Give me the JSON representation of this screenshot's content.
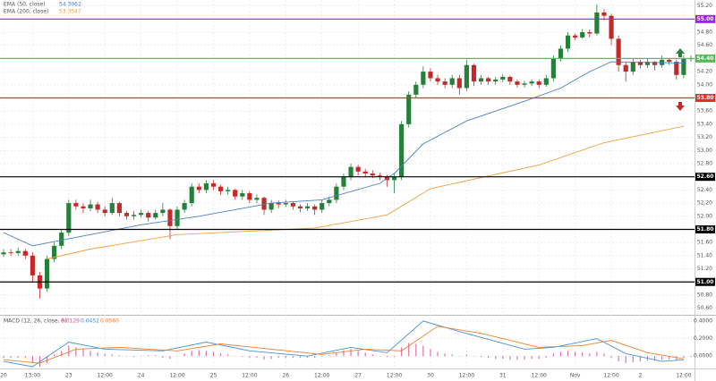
{
  "chart_data": [
    {
      "type": "candlestick",
      "legend": [
        {
          "label": "EMA (50, close)",
          "value": "54.3062",
          "color": "#4a7fc1"
        },
        {
          "label": "EMA (200, close)",
          "value": "53.3547",
          "color": "#f0a040"
        }
      ],
      "categories": [
        "20",
        null,
        null,
        null,
        "13:00",
        null,
        null,
        null,
        null,
        "23",
        null,
        null,
        null,
        null,
        "12:00",
        null,
        null,
        null,
        null,
        "24",
        null,
        null,
        null,
        null,
        "12:00",
        null,
        null,
        null,
        null,
        "25",
        null,
        null,
        null,
        null,
        "12:00",
        null,
        null,
        null,
        null,
        "26",
        null,
        null,
        null,
        null,
        "12:00",
        null,
        null,
        null,
        null,
        "27",
        null,
        null,
        null,
        null,
        "12:00",
        null,
        null,
        null,
        null,
        "30",
        null,
        null,
        null,
        null,
        "12:00",
        null,
        null,
        null,
        null,
        "31",
        null,
        null,
        null,
        null,
        "12:00",
        null,
        null,
        null,
        null,
        "Nov",
        null,
        null,
        null,
        null,
        "12:00",
        null,
        null,
        null,
        "2",
        null,
        null,
        null,
        null,
        null,
        "12:00",
        null
      ],
      "ohlc": [
        [
          51.42,
          51.5,
          51.38,
          51.45
        ],
        [
          51.45,
          51.5,
          51.4,
          51.44
        ],
        [
          51.44,
          51.52,
          51.4,
          51.47
        ],
        [
          51.47,
          51.5,
          51.35,
          51.4
        ],
        [
          51.4,
          51.45,
          51.0,
          51.1
        ],
        [
          51.1,
          51.15,
          50.75,
          50.9
        ],
        [
          50.9,
          51.4,
          50.85,
          51.35
        ],
        [
          51.35,
          51.6,
          51.3,
          51.55
        ],
        [
          51.55,
          51.8,
          51.5,
          51.75
        ],
        [
          51.75,
          52.25,
          51.7,
          52.2
        ],
        [
          52.2,
          52.25,
          52.1,
          52.15
        ],
        [
          52.15,
          52.2,
          52.05,
          52.12
        ],
        [
          52.12,
          52.25,
          52.08,
          52.18
        ],
        [
          52.18,
          52.22,
          52.05,
          52.1
        ],
        [
          52.1,
          52.15,
          52.0,
          52.05
        ],
        [
          52.05,
          52.28,
          52.02,
          52.2
        ],
        [
          52.2,
          52.22,
          52.0,
          52.05
        ],
        [
          52.05,
          52.08,
          51.95,
          52.0
        ],
        [
          52.0,
          52.08,
          51.95,
          52.02
        ],
        [
          52.02,
          52.1,
          51.98,
          52.05
        ],
        [
          52.05,
          52.08,
          51.92,
          51.98
        ],
        [
          51.98,
          52.1,
          51.95,
          52.05
        ],
        [
          52.05,
          52.2,
          52.0,
          52.1
        ],
        [
          52.1,
          52.12,
          51.65,
          51.85
        ],
        [
          51.85,
          52.15,
          51.8,
          52.1
        ],
        [
          52.1,
          52.25,
          52.05,
          52.2
        ],
        [
          52.2,
          52.5,
          52.15,
          52.45
        ],
        [
          52.45,
          52.5,
          52.35,
          52.4
        ],
        [
          52.4,
          52.55,
          52.35,
          52.5
        ],
        [
          52.5,
          52.55,
          52.4,
          52.45
        ],
        [
          52.45,
          52.48,
          52.32,
          52.38
        ],
        [
          52.38,
          52.45,
          52.33,
          52.4
        ],
        [
          52.4,
          52.42,
          52.25,
          52.3
        ],
        [
          52.3,
          52.4,
          52.25,
          52.35
        ],
        [
          52.35,
          52.38,
          52.2,
          52.25
        ],
        [
          52.25,
          52.33,
          52.2,
          52.28
        ],
        [
          52.28,
          52.3,
          52.02,
          52.1
        ],
        [
          52.1,
          52.25,
          52.05,
          52.2
        ],
        [
          52.2,
          52.24,
          52.12,
          52.18
        ],
        [
          52.18,
          52.25,
          52.14,
          52.2
        ],
        [
          52.2,
          52.22,
          52.1,
          52.15
        ],
        [
          52.15,
          52.18,
          52.06,
          52.12
        ],
        [
          52.12,
          52.2,
          52.08,
          52.15
        ],
        [
          52.15,
          52.18,
          52.02,
          52.1
        ],
        [
          52.1,
          52.25,
          52.05,
          52.2
        ],
        [
          52.2,
          52.3,
          52.15,
          52.25
        ],
        [
          52.25,
          52.5,
          52.2,
          52.45
        ],
        [
          52.45,
          52.65,
          52.4,
          52.6
        ],
        [
          52.6,
          52.8,
          52.55,
          52.75
        ],
        [
          52.75,
          52.78,
          52.62,
          52.68
        ],
        [
          52.68,
          52.72,
          52.6,
          52.65
        ],
        [
          52.65,
          52.7,
          52.58,
          52.62
        ],
        [
          52.62,
          52.66,
          52.55,
          52.6
        ],
        [
          52.6,
          52.63,
          52.45,
          52.55
        ],
        [
          52.55,
          52.65,
          52.35,
          52.6
        ],
        [
          52.6,
          53.45,
          52.55,
          53.4
        ],
        [
          53.4,
          53.9,
          53.35,
          53.85
        ],
        [
          53.85,
          54.05,
          53.8,
          54.0
        ],
        [
          54.0,
          54.28,
          53.95,
          54.2
        ],
        [
          54.2,
          54.25,
          54.05,
          54.1
        ],
        [
          54.1,
          54.15,
          54.0,
          54.05
        ],
        [
          54.05,
          54.1,
          53.95,
          54.0
        ],
        [
          54.0,
          54.15,
          53.95,
          54.1
        ],
        [
          54.1,
          54.15,
          53.85,
          53.95
        ],
        [
          53.95,
          54.38,
          53.9,
          54.3
        ],
        [
          54.3,
          54.32,
          53.98,
          54.05
        ],
        [
          54.05,
          54.15,
          54.0,
          54.1
        ],
        [
          54.1,
          54.12,
          54.0,
          54.05
        ],
        [
          54.05,
          54.12,
          54.0,
          54.08
        ],
        [
          54.08,
          54.16,
          54.04,
          54.12
        ],
        [
          54.12,
          54.14,
          54.0,
          54.05
        ],
        [
          54.05,
          54.08,
          53.96,
          54.0
        ],
        [
          54.0,
          54.06,
          53.96,
          54.02
        ],
        [
          54.02,
          54.08,
          53.98,
          54.05
        ],
        [
          54.05,
          54.08,
          53.95,
          54.0
        ],
        [
          54.0,
          54.15,
          53.97,
          54.1
        ],
        [
          54.1,
          54.45,
          54.05,
          54.4
        ],
        [
          54.4,
          54.6,
          54.35,
          54.55
        ],
        [
          54.55,
          54.8,
          54.5,
          54.75
        ],
        [
          54.75,
          54.78,
          54.68,
          54.72
        ],
        [
          54.72,
          54.85,
          54.7,
          54.8
        ],
        [
          54.8,
          54.84,
          54.72,
          54.78
        ],
        [
          54.78,
          55.22,
          54.75,
          55.1
        ],
        [
          55.1,
          55.15,
          54.98,
          55.05
        ],
        [
          55.05,
          55.08,
          54.6,
          54.7
        ],
        [
          54.7,
          54.75,
          54.2,
          54.3
        ],
        [
          54.3,
          54.35,
          54.05,
          54.2
        ],
        [
          54.2,
          54.4,
          54.15,
          54.35
        ],
        [
          54.35,
          54.38,
          54.25,
          54.3
        ],
        [
          54.3,
          54.4,
          54.26,
          54.35
        ],
        [
          54.35,
          54.36,
          54.22,
          54.3
        ],
        [
          54.3,
          54.45,
          54.26,
          54.38
        ],
        [
          54.38,
          54.4,
          54.3,
          54.35
        ],
        [
          54.35,
          54.38,
          54.08,
          54.15
        ],
        [
          54.15,
          54.45,
          54.1,
          54.4
        ],
        [
          54.4,
          54.45,
          54.35,
          54.4
        ]
      ],
      "up_color": "#26803a",
      "down_color": "#c62828",
      "series": [
        {
          "name": "EMA (50, close)",
          "color": "#4a7fc1",
          "x": [
            0,
            4,
            12,
            19,
            27,
            37,
            44,
            52,
            54,
            58,
            64,
            72,
            77,
            81,
            84,
            94
          ],
          "values": [
            51.75,
            51.55,
            51.72,
            51.87,
            52.0,
            52.2,
            52.25,
            52.5,
            52.65,
            53.1,
            53.45,
            53.75,
            53.95,
            54.2,
            54.35,
            54.33
          ]
        },
        {
          "name": "EMA (200, close)",
          "color": "#f0a040",
          "x": [
            6,
            12,
            24,
            43,
            53,
            59,
            74,
            83,
            94
          ],
          "values": [
            51.35,
            51.5,
            51.72,
            51.82,
            52.02,
            52.42,
            52.78,
            53.12,
            53.37
          ]
        }
      ],
      "levels": [
        {
          "value": 55,
          "label": "55.00",
          "color": "#a020f0"
        },
        {
          "value": 54.4,
          "label": "54.40",
          "color": "#5cb85c"
        },
        {
          "value": 53.8,
          "label": "53.80",
          "color": "#e0312f"
        },
        {
          "value": 52.6,
          "label": "52.60",
          "color": "#000000"
        },
        {
          "value": 51.8,
          "label": "51.80",
          "color": "#000000"
        },
        {
          "value": 51,
          "label": "51.00",
          "color": "#000000"
        }
      ],
      "ylim": [
        50.5,
        55.29
      ],
      "yticks": [
        {
          "value": 55.2,
          "label": "55.20"
        },
        {
          "value": 54.8,
          "label": "54.80"
        },
        {
          "value": 54.6,
          "label": "54.60"
        },
        {
          "value": 54.2,
          "label": "54.20"
        },
        {
          "value": 54.0,
          "label": "54.00"
        },
        {
          "value": 53.6,
          "label": "53.60"
        },
        {
          "value": 53.4,
          "label": "53.40"
        },
        {
          "value": 53.2,
          "label": "53.20"
        },
        {
          "value": 53.0,
          "label": "53.00"
        },
        {
          "value": 52.8,
          "label": "52.80"
        },
        {
          "value": 52.4,
          "label": "52.40"
        },
        {
          "value": 52.2,
          "label": "52.20"
        },
        {
          "value": 52.0,
          "label": "52.00"
        },
        {
          "value": 51.6,
          "label": "51.60"
        },
        {
          "value": 51.4,
          "label": "51.40"
        },
        {
          "value": 51.2,
          "label": "51.20"
        },
        {
          "value": 50.8,
          "label": "50.80"
        },
        {
          "value": 50.6,
          "label": "50.60"
        }
      ],
      "grid": true
    },
    {
      "type": "macd",
      "title": "MACD (12, 26, close, 9)",
      "legend": [
        {
          "value": "0.0129",
          "color": "#e05090"
        },
        {
          "value": "0.0452",
          "color": "#4a90d9"
        },
        {
          "value": "0.0560",
          "color": "#f08030"
        }
      ],
      "histogram": {
        "color": "#e070b0",
        "values": [
          -0.02,
          -0.02,
          -0.02,
          -0.02,
          -0.08,
          -0.12,
          -0.08,
          0.02,
          0.06,
          0.12,
          0.1,
          0.08,
          0.06,
          0.04,
          0.03,
          0.02,
          0.01,
          0,
          -0.01,
          0,
          0.01,
          0.01,
          -0.02,
          -0.03,
          0,
          0.03,
          0.06,
          0.07,
          0.06,
          0.05,
          0.03,
          0.02,
          0,
          -0.01,
          -0.02,
          -0.02,
          -0.04,
          -0.03,
          -0.02,
          -0.02,
          -0.02,
          -0.02,
          -0.02,
          -0.02,
          0,
          0.01,
          0.04,
          0.07,
          0.08,
          0.06,
          0.04,
          0.02,
          0,
          -0.01,
          -0.01,
          0.1,
          0.15,
          0.14,
          0.12,
          0.08,
          0.05,
          0.03,
          0.02,
          0,
          0.02,
          0,
          -0.01,
          -0.02,
          -0.03,
          -0.03,
          -0.04,
          -0.04,
          -0.04,
          -0.03,
          -0.03,
          -0.02,
          0.03,
          0.05,
          0.06,
          0.05,
          0.04,
          0.03,
          0.05,
          0.03,
          -0.02,
          -0.06,
          -0.08,
          -0.07,
          -0.06,
          -0.05,
          -0.05,
          -0.04,
          -0.04,
          -0.05,
          -0.02,
          -0.01
        ]
      },
      "series": [
        {
          "name": "MACD",
          "color": "#4a90d9",
          "x": [
            0,
            4,
            9,
            14,
            22,
            28,
            34,
            42,
            48,
            53,
            58,
            63,
            72,
            76,
            82,
            86,
            91,
            94
          ],
          "values": [
            -0.06,
            -0.12,
            0.16,
            0.08,
            0.06,
            0.16,
            0.06,
            0,
            0.1,
            0.04,
            0.4,
            0.28,
            0.08,
            0.1,
            0.2,
            0.03,
            -0.06,
            -0.04
          ]
        },
        {
          "name": "Signal",
          "color": "#f08030",
          "x": [
            0,
            5,
            10,
            16,
            24,
            30,
            37,
            44,
            50,
            55,
            60,
            66,
            74,
            80,
            84,
            89,
            94
          ],
          "values": [
            -0.04,
            -0.08,
            0.08,
            0.1,
            0.06,
            0.14,
            0.08,
            0.02,
            0.08,
            0.06,
            0.34,
            0.26,
            0.1,
            0.12,
            0.18,
            0.04,
            -0.03
          ]
        }
      ],
      "ylim": [
        -0.14,
        0.46
      ],
      "yticks": [
        {
          "value": 0.4,
          "label": "0.4000"
        },
        {
          "value": 0.2,
          "label": "0.2000"
        },
        {
          "value": 0,
          "label": "0.0000"
        }
      ]
    }
  ]
}
